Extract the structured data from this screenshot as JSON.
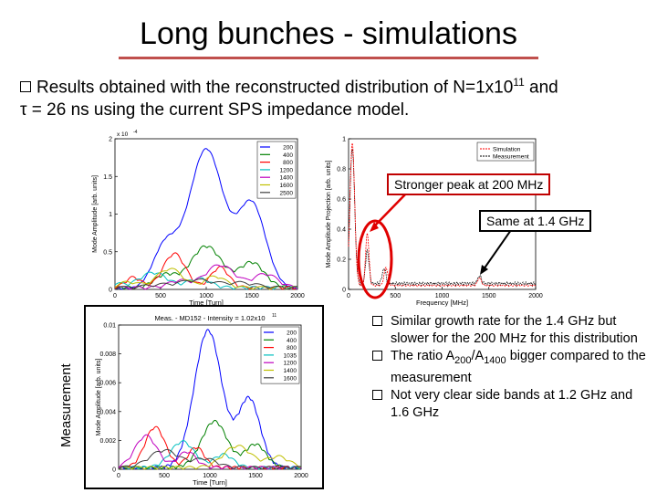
{
  "slide": {
    "title": "Long bunches - simulations",
    "intro_line1_a": "Results obtained with the reconstructed distribution of N=1x10",
    "intro_exp": "11",
    "intro_line1_b": " and",
    "intro_line2": "τ = 26 ns using the current SPS impedance model."
  },
  "callouts": {
    "peak200": "Stronger peak at 200 MHz",
    "same14": "Same at 1.4 GHz"
  },
  "measurement_label": "Measurement",
  "bullets": {
    "b1": "Similar growth rate for the 1.4 GHz but slower for the 200 MHz for this distribution",
    "b2_a": "The ratio A",
    "b2_sub1": "200",
    "b2_mid": "/A",
    "b2_sub2": "1400",
    "b2_b": " bigger compared to the measurement",
    "b3": "Not very clear side bands at 1.2 GHz and 1.6 GHz"
  },
  "chart_data": [
    {
      "type": "line",
      "xlabel": "Time [Turn]",
      "ylabel": "Mode Amplitude [arb. units]",
      "yexp": "x 10",
      "yexp_pow": "-4",
      "xlim": [
        0,
        2000
      ],
      "ylim": [
        0,
        2
      ],
      "xticks": [
        "0",
        "500",
        "1000",
        "1500",
        "2000"
      ],
      "yticks": [
        "0",
        "0.5",
        "1",
        "1.5",
        "2"
      ],
      "series": [
        {
          "name": "200",
          "color": "#0000ff",
          "peak": 1.85
        },
        {
          "name": "400",
          "color": "#008000",
          "peak": 0.55
        },
        {
          "name": "800",
          "color": "#ff0000",
          "peak": 0.45
        },
        {
          "name": "1200",
          "color": "#00bfbf",
          "peak": 0.2
        },
        {
          "name": "1400",
          "color": "#bf00bf",
          "peak": 0.3
        },
        {
          "name": "1600",
          "color": "#bfbf00",
          "peak": 0.25
        },
        {
          "name": "2500",
          "color": "#404040",
          "peak": 0.1
        }
      ]
    },
    {
      "type": "line",
      "xlabel": "Frequency [MHz]",
      "ylabel": "Mode Amplitude Projection [arb. units]",
      "xlim": [
        0,
        2000
      ],
      "ylim": [
        0,
        1
      ],
      "xticks": [
        "0",
        "500",
        "1000",
        "1500",
        "2000"
      ],
      "yticks": [
        "0",
        "0.2",
        "0.4",
        "0.6",
        "0.8",
        "1"
      ],
      "series": [
        {
          "name": "Simulation",
          "color": "#ff0000"
        },
        {
          "name": "Measurement",
          "color": "#000000"
        }
      ]
    },
    {
      "type": "line",
      "title": "Meas. - MD152 - Intensity = 1.02x10",
      "title_exp": "11",
      "xlabel": "Time [Turn]",
      "ylabel": "Mode Amplitude [arb. units]",
      "xlim": [
        0,
        2000
      ],
      "ylim": [
        0,
        0.01
      ],
      "xticks": [
        "0",
        "500",
        "1000",
        "1500",
        "2000"
      ],
      "yticks": [
        "0",
        "0.002",
        "0.004",
        "0.006",
        "0.008",
        "0.01"
      ],
      "series": [
        {
          "name": "200",
          "color": "#0000ff"
        },
        {
          "name": "400",
          "color": "#008000"
        },
        {
          "name": "800",
          "color": "#ff0000"
        },
        {
          "name": "1035",
          "color": "#00bfbf"
        },
        {
          "name": "1200",
          "color": "#bf00bf"
        },
        {
          "name": "1400",
          "color": "#bfbf00"
        },
        {
          "name": "1600",
          "color": "#404040"
        }
      ]
    }
  ]
}
